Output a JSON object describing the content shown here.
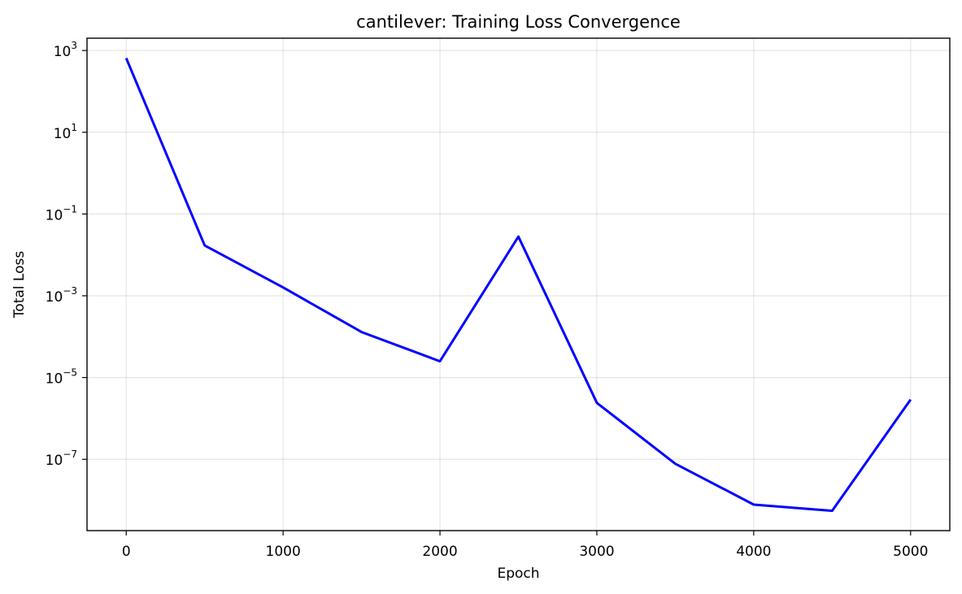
{
  "chart_data": {
    "type": "line",
    "title": "cantilever: Training Loss Convergence",
    "xlabel": "Epoch",
    "ylabel": "Total Loss",
    "yscale": "log",
    "xlim": [
      -250,
      5250
    ],
    "ylim": [
      1.8e-09,
      2000
    ],
    "grid": true,
    "x_ticks": [
      0,
      1000,
      2000,
      3000,
      4000,
      5000
    ],
    "y_ticks": [
      {
        "value": 1000,
        "base": "10",
        "exp": "3"
      },
      {
        "value": 10,
        "base": "10",
        "exp": "1"
      },
      {
        "value": 0.1,
        "base": "10",
        "exp": "−1"
      },
      {
        "value": 0.001,
        "base": "10",
        "exp": "−3"
      },
      {
        "value": 1e-05,
        "base": "10",
        "exp": "−5"
      },
      {
        "value": 1e-07,
        "base": "10",
        "exp": "−7"
      }
    ],
    "series": [
      {
        "color": "#0000ff",
        "x": [
          0,
          500,
          1000,
          1500,
          2000,
          2500,
          3000,
          3500,
          4000,
          4500,
          5000
        ],
        "y": [
          650,
          0.017,
          0.0016,
          0.00013,
          2.5e-05,
          0.028,
          2.4e-06,
          7.8e-08,
          7.8e-09,
          5.5e-09,
          2.9e-06
        ]
      }
    ]
  }
}
